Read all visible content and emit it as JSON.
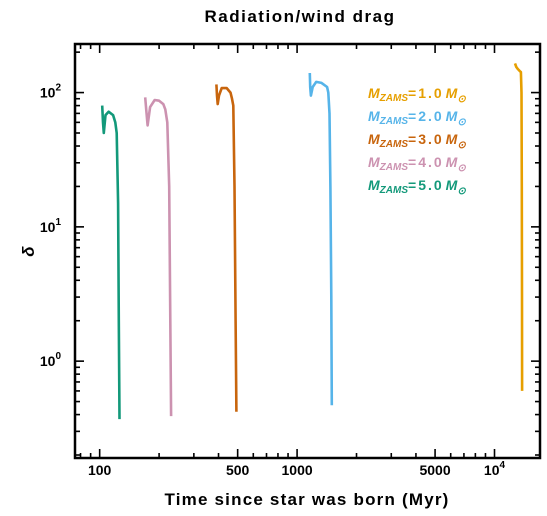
{
  "chart_data": {
    "type": "line",
    "title": "Radiation/wind drag",
    "xlabel": "Time since star was born (Myr)",
    "ylabel": "δ",
    "x_scale": "log",
    "y_scale": "log",
    "xlim": [
      75,
      17000
    ],
    "ylim": [
      0.19,
      230
    ],
    "x_ticks": [
      {
        "value": 100,
        "label": "100"
      },
      {
        "value": 500,
        "label": "500"
      },
      {
        "value": 1000,
        "label": "1000"
      },
      {
        "value": 5000,
        "label": "5000"
      },
      {
        "value": 10000,
        "label": "10",
        "exp": "4"
      }
    ],
    "y_ticks": [
      {
        "value": 1,
        "label": "10",
        "exp": "0"
      },
      {
        "value": 10,
        "label": "10",
        "exp": "1"
      },
      {
        "value": 100,
        "label": "10",
        "exp": "2"
      }
    ],
    "grid": false,
    "legend_position": "top-right",
    "series": [
      {
        "name": "M_ZAMS=1.0 M_⊙",
        "mass": "1.0",
        "color": "#E69F00",
        "points": [
          [
            12700,
            165
          ],
          [
            12900,
            155
          ],
          [
            13100,
            150
          ],
          [
            13400,
            145
          ],
          [
            13600,
            142
          ],
          [
            13700,
            100
          ],
          [
            13750,
            20
          ],
          [
            13780,
            3
          ],
          [
            13800,
            0.6
          ]
        ]
      },
      {
        "name": "M_ZAMS=2.0 M_⊙",
        "mass": "2.0",
        "color": "#56B4E9",
        "points": [
          [
            1160,
            140
          ],
          [
            1165,
            110
          ],
          [
            1175,
            95
          ],
          [
            1200,
            110
          ],
          [
            1250,
            120
          ],
          [
            1330,
            118
          ],
          [
            1420,
            110
          ],
          [
            1440,
            100
          ],
          [
            1460,
            70
          ],
          [
            1475,
            20
          ],
          [
            1490,
            3
          ],
          [
            1500,
            0.47
          ]
        ]
      },
      {
        "name": "M_ZAMS=3.0 M_⊙",
        "mass": "3.0",
        "color": "#C8650D",
        "points": [
          [
            390,
            115
          ],
          [
            393,
            95
          ],
          [
            396,
            82
          ],
          [
            402,
            95
          ],
          [
            415,
            108
          ],
          [
            440,
            108
          ],
          [
            460,
            100
          ],
          [
            468,
            90
          ],
          [
            475,
            80
          ],
          [
            482,
            20
          ],
          [
            488,
            2
          ],
          [
            493,
            0.42
          ]
        ]
      },
      {
        "name": "M_ZAMS=4.0 M_⊙",
        "mass": "4.0",
        "color": "#CC92B0",
        "points": [
          [
            170,
            92
          ],
          [
            172,
            75
          ],
          [
            175,
            57
          ],
          [
            180,
            78
          ],
          [
            190,
            88
          ],
          [
            200,
            87
          ],
          [
            210,
            82
          ],
          [
            215,
            75
          ],
          [
            220,
            60
          ],
          [
            225,
            20
          ],
          [
            228,
            2
          ],
          [
            230,
            0.39
          ]
        ]
      },
      {
        "name": "M_ZAMS=5.0 M_⊙",
        "mass": "5.0",
        "color": "#13997A",
        "points": [
          [
            103,
            80
          ],
          [
            104,
            60
          ],
          [
            105,
            50
          ],
          [
            107,
            68
          ],
          [
            111,
            72
          ],
          [
            117,
            68
          ],
          [
            120,
            60
          ],
          [
            122,
            50
          ],
          [
            124,
            15
          ],
          [
            125,
            2
          ],
          [
            126,
            0.37
          ]
        ]
      }
    ]
  }
}
